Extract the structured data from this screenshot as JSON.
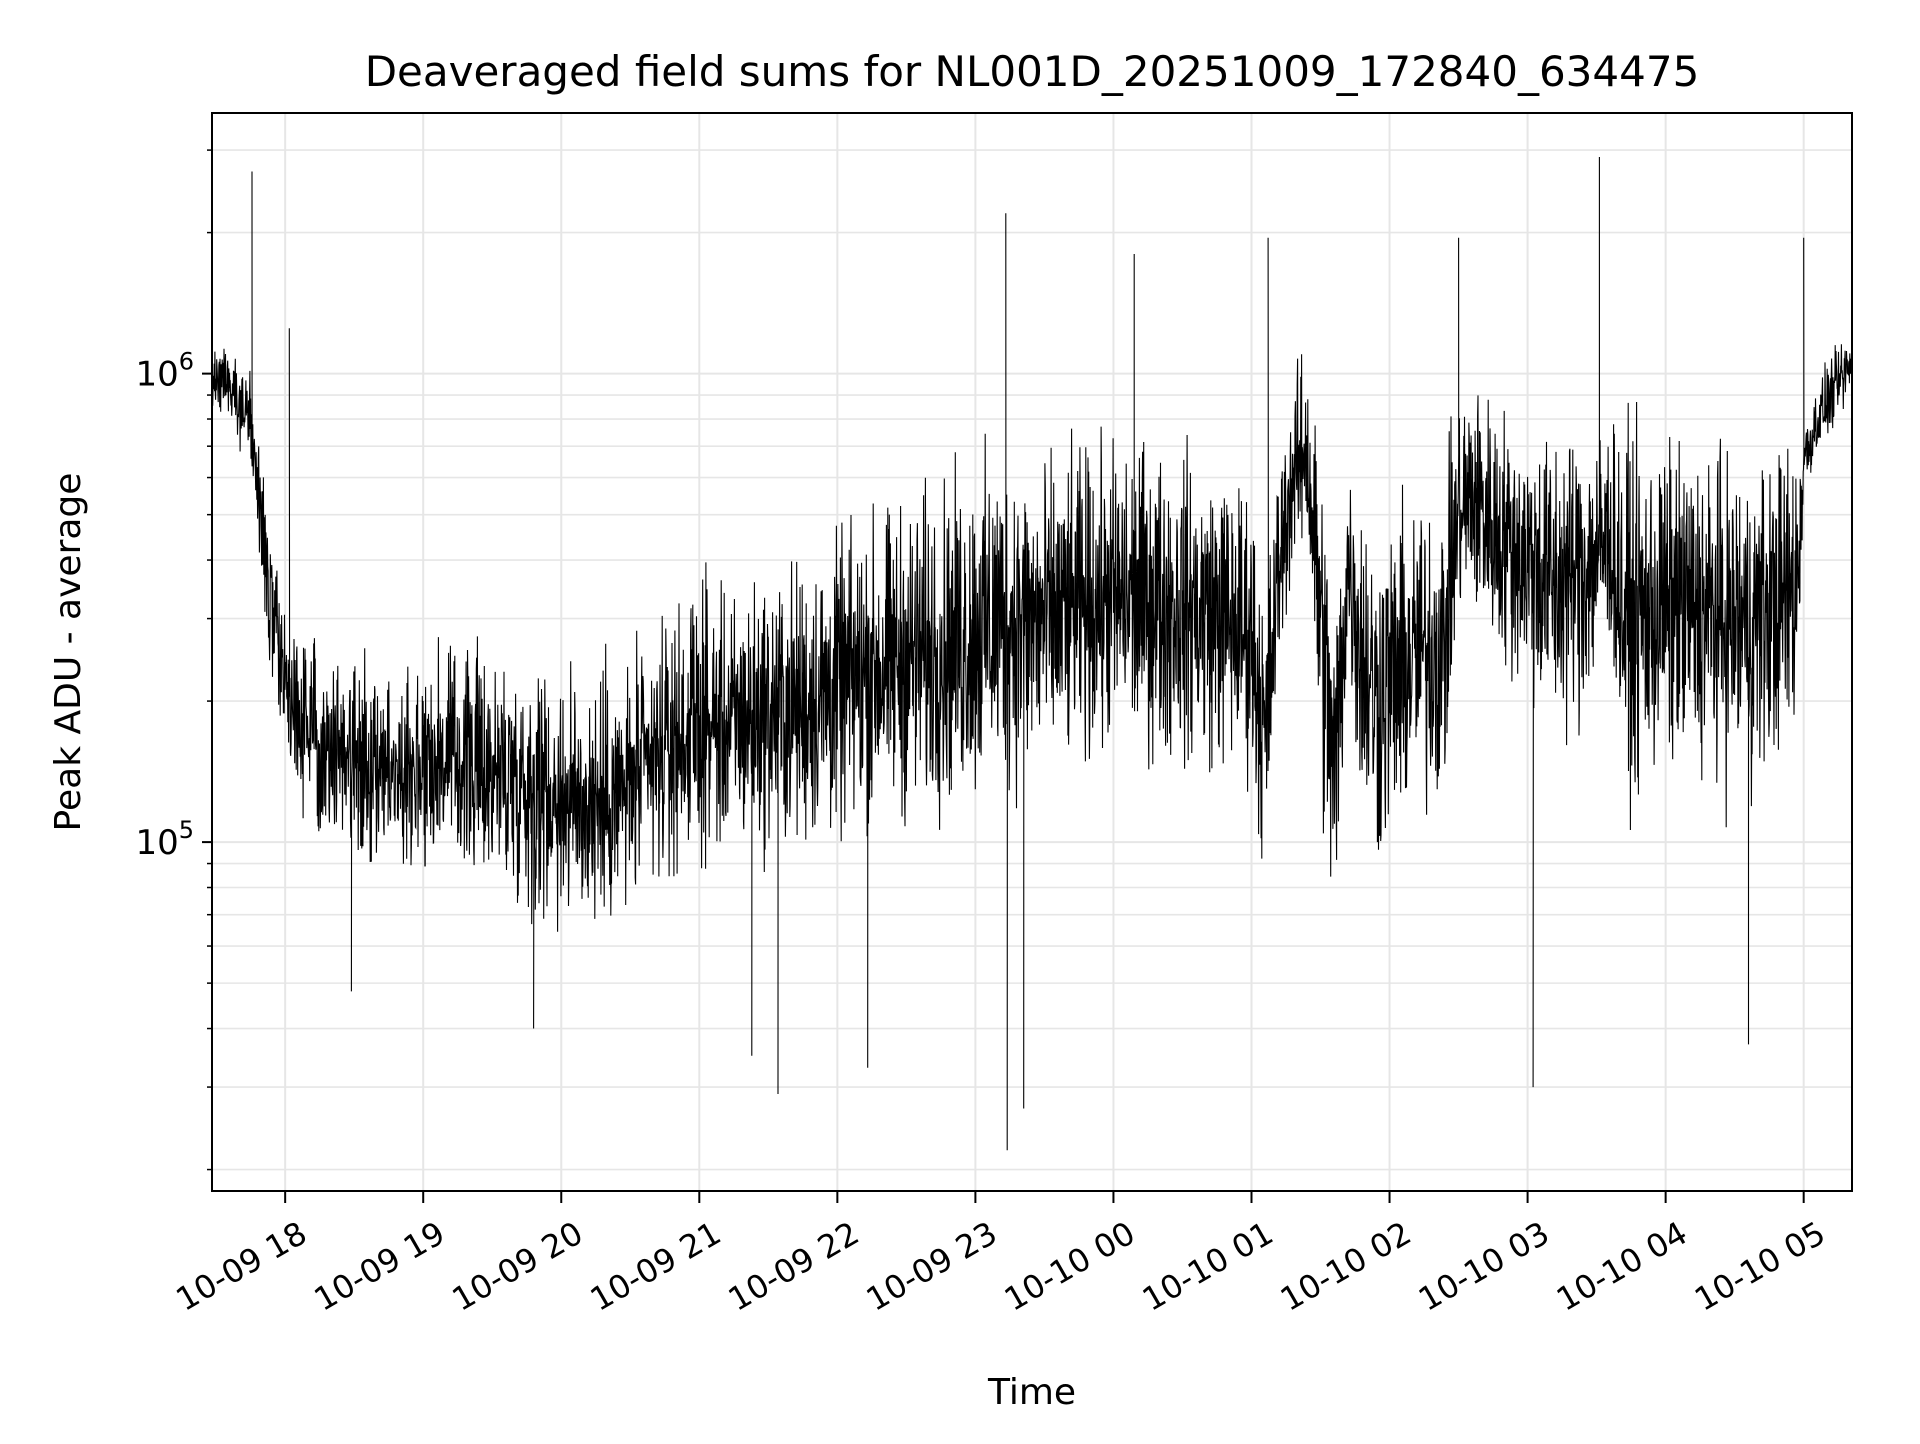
{
  "chart_data": {
    "type": "line",
    "title": "Deaveraged field sums for NL001D_20251009_172840_634475",
    "xlabel": "Time",
    "ylabel": "Peak ADU - average",
    "yscale": "log",
    "ylim": [
      18000,
      3600000
    ],
    "xlim_hours": [
      17.47,
      29.35
    ],
    "grid": true,
    "line_color": "#000000",
    "grid_color": "#e6e6e6",
    "x_ticks": [
      {
        "label": "10-09 18",
        "hour": 18
      },
      {
        "label": "10-09 19",
        "hour": 19
      },
      {
        "label": "10-09 20",
        "hour": 20
      },
      {
        "label": "10-09 21",
        "hour": 21
      },
      {
        "label": "10-09 22",
        "hour": 22
      },
      {
        "label": "10-09 23",
        "hour": 23
      },
      {
        "label": "10-10 00",
        "hour": 24
      },
      {
        "label": "10-10 01",
        "hour": 25
      },
      {
        "label": "10-10 02",
        "hour": 26
      },
      {
        "label": "10-10 03",
        "hour": 27
      },
      {
        "label": "10-10 04",
        "hour": 28
      },
      {
        "label": "10-10 05",
        "hour": 29
      }
    ],
    "y_ticks": [
      {
        "base": "10",
        "exp": "5",
        "value": 100000
      },
      {
        "base": "10",
        "exp": "6",
        "value": 1000000
      }
    ],
    "series": [
      {
        "name": "deaveraged field sum",
        "x_hours": [
          17.47,
          17.55,
          17.65,
          17.75,
          17.85,
          17.95,
          18.05,
          18.2,
          18.4,
          18.6,
          18.8,
          19.0,
          19.2,
          19.4,
          19.6,
          19.8,
          20.0,
          20.2,
          20.4,
          20.6,
          20.8,
          21.0,
          21.2,
          21.4,
          21.6,
          21.8,
          22.0,
          22.2,
          22.4,
          22.6,
          22.8,
          23.0,
          23.2,
          23.4,
          23.6,
          23.8,
          24.0,
          24.2,
          24.4,
          24.6,
          24.8,
          25.0,
          25.1,
          25.2,
          25.3,
          25.4,
          25.5,
          25.6,
          25.7,
          25.8,
          25.9,
          26.0,
          26.2,
          26.4,
          26.45,
          26.5,
          26.6,
          26.8,
          27.0,
          27.2,
          27.4,
          27.6,
          27.7,
          27.8,
          28.0,
          28.2,
          28.4,
          28.6,
          28.8,
          28.95,
          29.0,
          29.1,
          29.2,
          29.35
        ],
        "center": [
          950000,
          1000000,
          900000,
          800000,
          400000,
          250000,
          200000,
          170000,
          160000,
          150000,
          140000,
          150000,
          150000,
          145000,
          140000,
          130000,
          125000,
          120000,
          125000,
          140000,
          160000,
          180000,
          175000,
          185000,
          190000,
          200000,
          210000,
          230000,
          240000,
          250000,
          260000,
          280000,
          300000,
          290000,
          300000,
          320000,
          330000,
          330000,
          320000,
          310000,
          300000,
          280000,
          160000,
          400000,
          600000,
          700000,
          300000,
          130000,
          400000,
          250000,
          200000,
          220000,
          250000,
          260000,
          400000,
          500000,
          550000,
          450000,
          400000,
          350000,
          380000,
          450000,
          300000,
          300000,
          320000,
          310000,
          300000,
          290000,
          320000,
          350000,
          650000,
          800000,
          900000,
          1050000
        ],
        "spread": [
          1.25,
          1.25,
          1.3,
          1.4,
          1.6,
          1.8,
          1.8,
          1.9,
          2.0,
          2.1,
          2.1,
          2.2,
          2.2,
          2.3,
          2.3,
          2.4,
          2.4,
          2.5,
          2.4,
          2.4,
          2.4,
          2.5,
          2.5,
          2.6,
          2.7,
          2.8,
          2.9,
          3.0,
          3.0,
          3.2,
          3.2,
          3.3,
          3.3,
          3.2,
          3.0,
          3.0,
          3.0,
          3.0,
          3.0,
          3.0,
          2.9,
          2.8,
          2.8,
          2.2,
          2.0,
          2.0,
          3.5,
          3.5,
          2.2,
          3.2,
          3.3,
          3.2,
          3.0,
          3.0,
          2.4,
          2.3,
          2.3,
          2.5,
          2.6,
          3.0,
          3.0,
          2.3,
          3.5,
          3.5,
          3.2,
          3.2,
          3.2,
          3.2,
          3.0,
          3.0,
          1.3,
          1.3,
          1.3,
          1.3
        ],
        "samples": 4500,
        "notable_points": [
          {
            "hour": 17.76,
            "value": 2700000
          },
          {
            "hour": 18.03,
            "value": 1250000
          },
          {
            "hour": 18.48,
            "value": 48000
          },
          {
            "hour": 19.8,
            "value": 40000
          },
          {
            "hour": 21.38,
            "value": 35000
          },
          {
            "hour": 21.57,
            "value": 29000
          },
          {
            "hour": 22.22,
            "value": 33000
          },
          {
            "hour": 23.22,
            "value": 2200000
          },
          {
            "hour": 23.23,
            "value": 22000
          },
          {
            "hour": 23.35,
            "value": 27000
          },
          {
            "hour": 24.15,
            "value": 1800000
          },
          {
            "hour": 25.12,
            "value": 1950000
          },
          {
            "hour": 26.5,
            "value": 1950000
          },
          {
            "hour": 27.04,
            "value": 30000
          },
          {
            "hour": 27.52,
            "value": 2900000
          },
          {
            "hour": 28.6,
            "value": 37000
          },
          {
            "hour": 29.0,
            "value": 1950000
          }
        ]
      }
    ]
  }
}
